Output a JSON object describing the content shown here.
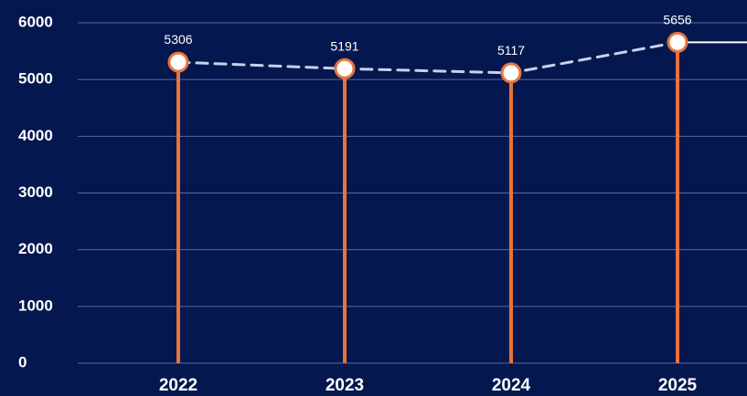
{
  "chart_data": {
    "type": "line",
    "categories": [
      "2022",
      "2023",
      "2024",
      "2025"
    ],
    "values": [
      5306,
      5191,
      5117,
      5656
    ],
    "data_labels": [
      "5306",
      "5191",
      "5117",
      "5656"
    ],
    "y_ticks": [
      "0",
      "1000",
      "2000",
      "3000",
      "4000",
      "5000",
      "6000"
    ],
    "ylim": [
      0,
      6000
    ],
    "title": "",
    "xlabel": "",
    "ylabel": "",
    "grid": true,
    "legend": "none",
    "line_style": "dashed",
    "colors": {
      "background": "#04174f",
      "stem": "#e8743b",
      "line": "#c9d1ea",
      "marker_fill": "#ffffff",
      "marker_stroke": "#e8743b",
      "grid": "#5a6a9c",
      "text": "#ffffff"
    }
  }
}
